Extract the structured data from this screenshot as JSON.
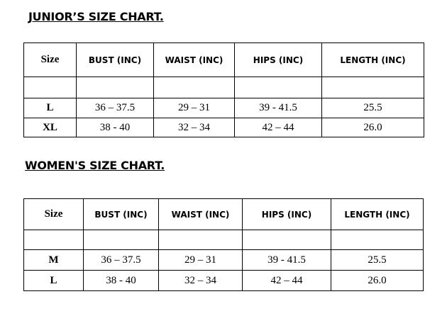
{
  "tables": [
    {
      "title": "JUNIOR’S SIZE CHART.",
      "header": [
        "Size",
        "BUST (INC)",
        "WAIST (INC)",
        "HIPS (INC)",
        "LENGTH (INC)"
      ],
      "rows": [
        [
          "L",
          "36 – 37.5",
          "29 – 31",
          "39 - 41.5",
          "25.5"
        ],
        [
          "XL",
          "38 - 40",
          "32 – 34",
          "42 – 44",
          "26.0"
        ]
      ]
    },
    {
      "title": "WOMEN'S SIZE CHART.",
      "header": [
        "Size",
        "BUST (INC)",
        "WAIST (INC)",
        "HIPS (INC)",
        "LENGTH (INC)"
      ],
      "rows": [
        [
          "M",
          "36 – 37.5",
          "29 – 31",
          "39 - 41.5",
          "25.5"
        ],
        [
          "L",
          "38 - 40",
          "32 – 34",
          "42 – 44",
          "26.0"
        ]
      ]
    }
  ]
}
